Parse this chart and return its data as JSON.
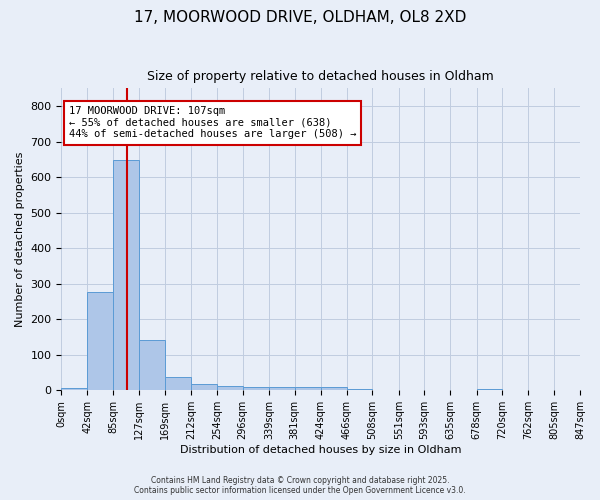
{
  "title_line1": "17, MOORWOOD DRIVE, OLDHAM, OL8 2XD",
  "title_line2": "Size of property relative to detached houses in Oldham",
  "xlabel": "Distribution of detached houses by size in Oldham",
  "ylabel": "Number of detached properties",
  "bin_edges": [
    0,
    42,
    85,
    127,
    169,
    212,
    254,
    296,
    339,
    381,
    424,
    466,
    508,
    551,
    593,
    635,
    678,
    720,
    762,
    805,
    847
  ],
  "bar_heights": [
    7,
    278,
    648,
    142,
    38,
    18,
    12,
    10,
    10,
    10,
    10,
    5,
    2,
    0,
    0,
    0,
    5,
    0,
    0,
    0
  ],
  "bar_color": "#aec6e8",
  "bar_edge_color": "#5b9bd5",
  "property_size": 107,
  "vline_color": "#cc0000",
  "annotation_text": "17 MOORWOOD DRIVE: 107sqm\n← 55% of detached houses are smaller (638)\n44% of semi-detached houses are larger (508) →",
  "annotation_box_color": "#ffffff",
  "annotation_border_color": "#cc0000",
  "ylim": [
    0,
    850
  ],
  "yticks": [
    0,
    100,
    200,
    300,
    400,
    500,
    600,
    700,
    800
  ],
  "tick_labels": [
    "0sqm",
    "42sqm",
    "85sqm",
    "127sqm",
    "169sqm",
    "212sqm",
    "254sqm",
    "296sqm",
    "339sqm",
    "381sqm",
    "424sqm",
    "466sqm",
    "508sqm",
    "551sqm",
    "593sqm",
    "635sqm",
    "678sqm",
    "720sqm",
    "762sqm",
    "805sqm",
    "847sqm"
  ],
  "background_color": "#e8eef8",
  "grid_color": "#c0cce0",
  "footer_line1": "Contains HM Land Registry data © Crown copyright and database right 2025.",
  "footer_line2": "Contains public sector information licensed under the Open Government Licence v3.0."
}
